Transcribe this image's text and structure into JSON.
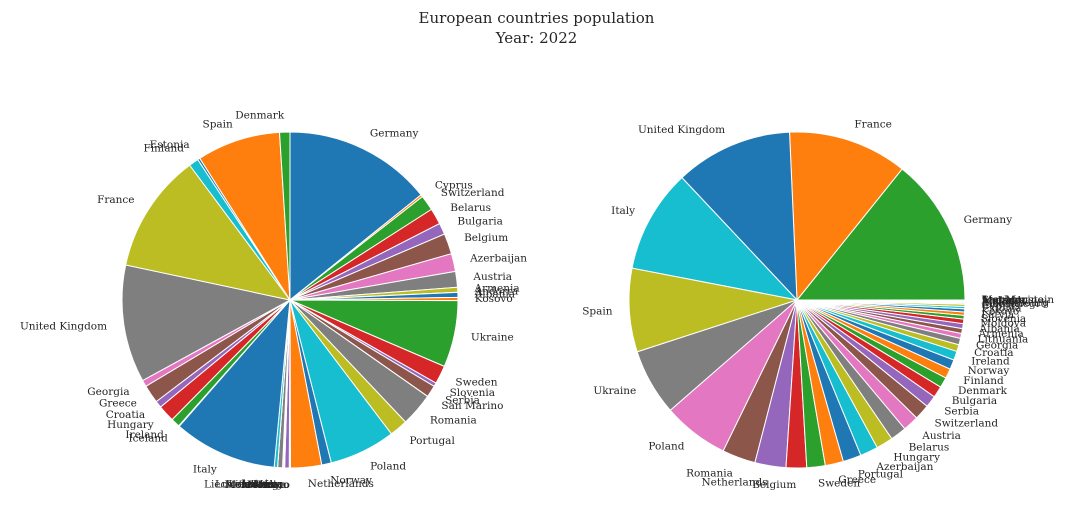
{
  "figure": {
    "title_line1": "European countries population",
    "title_line2": "Year: 2022"
  },
  "chart_data": [
    {
      "type": "pie",
      "labels": [
        "Germany",
        "Cyprus",
        "Switzerland",
        "Belarus",
        "Bulgaria",
        "Belgium",
        "Azerbaijan",
        "Austria",
        "Armenia",
        "Andorra",
        "Albania",
        "Kosovo",
        "Ukraine",
        "Sweden",
        "Slovenia",
        "Serbia",
        "San Marino",
        "Romania",
        "Portugal",
        "Poland",
        "Norway",
        "Netherlands",
        "Montenegro",
        "Monaco",
        "Moldova",
        "Malta",
        "Luxembourg",
        "Lithuania",
        "Liechtenstein",
        "Latvia",
        "Italy",
        "Iceland",
        "Ireland",
        "Hungary",
        "Croatia",
        "Greece",
        "Georgia",
        "United Kingdom",
        "France",
        "Finland",
        "Estonia",
        "Spain",
        "Denmark"
      ],
      "values": [
        84.4,
        1.25,
        8.8,
        9.2,
        6.5,
        11.7,
        10.2,
        9.0,
        2.8,
        0.08,
        2.8,
        1.8,
        38.0,
        10.5,
        2.1,
        6.7,
        0.034,
        19.0,
        10.4,
        37.7,
        5.5,
        17.7,
        0.62,
        0.037,
        2.6,
        0.53,
        0.65,
        2.8,
        0.039,
        1.9,
        59.0,
        0.38,
        5.1,
        9.6,
        3.9,
        10.4,
        3.7,
        67.0,
        68.0,
        5.55,
        1.33,
        47.6,
        5.9
      ],
      "colors": [
        "#1f77b4",
        "#ff7f0e",
        "#2ca02c",
        "#d62728",
        "#9467bd",
        "#8c564b",
        "#e377c2",
        "#7f7f7f",
        "#bcbd22",
        "#17becf"
      ],
      "start_angle_deg": 90,
      "direction": "clockwise"
    },
    {
      "type": "pie",
      "labels": [
        "Germany",
        "France",
        "United Kingdom",
        "Italy",
        "Spain",
        "Ukraine",
        "Poland",
        "Romania",
        "Netherlands",
        "Belgium",
        "Sweden",
        "Greece",
        "Portugal",
        "Azerbaijan",
        "Hungary",
        "Belarus",
        "Austria",
        "Switzerland",
        "Serbia",
        "Bulgaria",
        "Denmark",
        "Finland",
        "Norway",
        "Ireland",
        "Croatia",
        "Georgia",
        "Lithuania",
        "Armenia",
        "Albania",
        "Moldova",
        "Slovenia",
        "Latvia",
        "Kosovo",
        "Estonia",
        "Cyprus",
        "Montenegro",
        "Luxembourg",
        "Malta",
        "Iceland",
        "Andorra",
        "Liechtenstein",
        "Monaco",
        "San Marino"
      ],
      "values": [
        84.4,
        68.0,
        67.0,
        59.0,
        47.6,
        38.0,
        37.7,
        19.0,
        17.7,
        11.7,
        10.5,
        10.4,
        10.4,
        10.2,
        9.6,
        9.2,
        9.0,
        8.8,
        6.7,
        6.5,
        5.9,
        5.55,
        5.5,
        5.1,
        3.9,
        3.7,
        2.8,
        2.8,
        2.8,
        2.6,
        2.1,
        1.9,
        1.8,
        1.33,
        1.25,
        0.62,
        0.65,
        0.53,
        0.38,
        0.08,
        0.039,
        0.037,
        0.034
      ],
      "colors": [
        "#2ca02c",
        "#ff7f0e",
        "#1f77b4",
        "#17becf",
        "#bcbd22",
        "#7f7f7f",
        "#e377c2",
        "#8c564b",
        "#9467bd",
        "#d62728"
      ],
      "start_angle_deg": 0,
      "direction": "counterclockwise"
    }
  ]
}
